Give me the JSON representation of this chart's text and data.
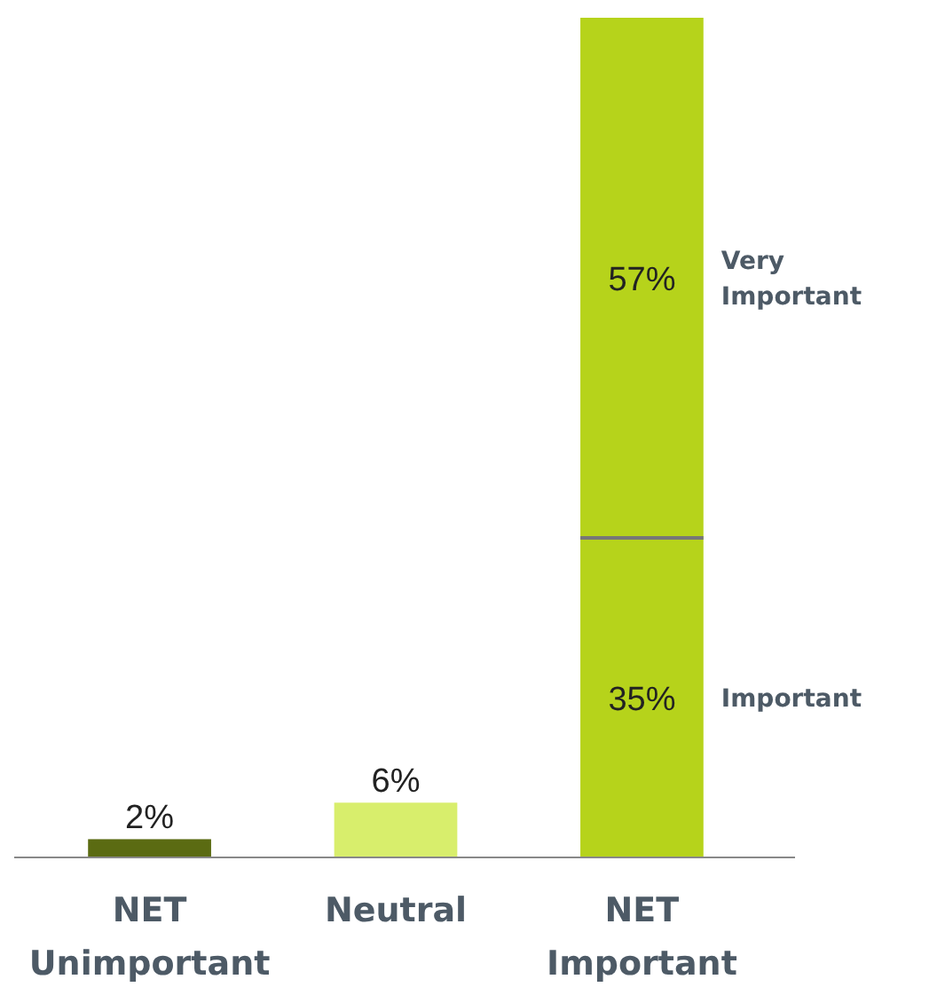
{
  "chart_data": {
    "type": "bar",
    "categories": [
      "NET Unimportant",
      "Neutral",
      "NET Important"
    ],
    "stacked": true,
    "series": [
      {
        "values": [
          2,
          6,
          null
        ],
        "value_labels": [
          "2%",
          "6%",
          null
        ],
        "colors": [
          "#5b6b12",
          "#d8ee6c",
          null
        ]
      },
      {
        "name": "Important",
        "color": "#b6d31b",
        "values": [
          null,
          null,
          35
        ],
        "value_labels": [
          null,
          null,
          "35%"
        ]
      },
      {
        "name": "Very Important",
        "color": "#b6d31b",
        "values": [
          null,
          null,
          57
        ],
        "value_labels": [
          null,
          null,
          "57%"
        ]
      }
    ]
  }
}
